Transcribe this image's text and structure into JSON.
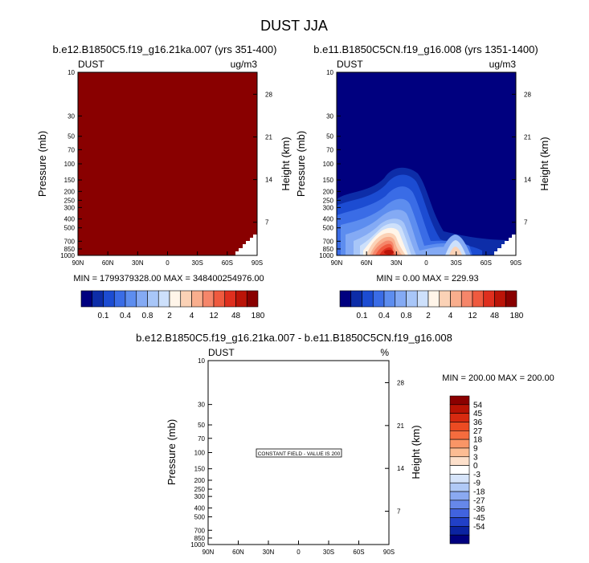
{
  "page_title": "DUST JJA",
  "chart_data": [
    {
      "type": "heatmap",
      "title": "b.e12.B1850C5.f19_g16.21ka.007 (yrs 351-400)",
      "variable": "DUST",
      "units": "ug/m3",
      "ylabel": "Pressure (mb)",
      "right_label": "Height (km)",
      "x_ticks": [
        "90N",
        "60N",
        "30N",
        "0",
        "30S",
        "60S",
        "90S"
      ],
      "y_ticks": [
        "10",
        "30",
        "50",
        "70",
        "100",
        "150",
        "200",
        "250",
        "300",
        "400",
        "500",
        "700",
        "850",
        "1000"
      ],
      "height_ticks": [
        "28",
        "21",
        "14",
        "7"
      ],
      "ylim": [
        10,
        1000
      ],
      "y_scale": "log",
      "stats": "MIN = 1799379328.00   MAX = 348400254976.00",
      "field": "saturated above top contour level (>180) everywhere except masked terrain near 90S surface",
      "levels": [
        "0.1",
        "0.4",
        "0.8",
        "2",
        "4",
        "12",
        "48",
        "180"
      ]
    },
    {
      "type": "heatmap",
      "title": "b.e11.B1850C5CN.f19_g16.008 (yrs 1351-1400)",
      "variable": "DUST",
      "units": "ug/m3",
      "ylabel": "Pressure (mb)",
      "right_label": "Height (km)",
      "x_ticks": [
        "90N",
        "60N",
        "30N",
        "0",
        "30S",
        "60S",
        "90S"
      ],
      "y_ticks": [
        "10",
        "30",
        "50",
        "70",
        "100",
        "150",
        "200",
        "250",
        "300",
        "400",
        "500",
        "700",
        "850",
        "1000"
      ],
      "height_ticks": [
        "28",
        "21",
        "14",
        "7"
      ],
      "ylim": [
        10,
        1000
      ],
      "y_scale": "log",
      "stats": "MIN =   0.00   MAX = 229.93",
      "field": "maximum near 20-25N below 700 mb; secondary maximum near 15S surface",
      "levels": [
        "0.1",
        "0.4",
        "0.8",
        "2",
        "4",
        "12",
        "48",
        "180"
      ]
    },
    {
      "type": "heatmap",
      "title": "b.e12.B1850C5.f19_g16.21ka.007 - b.e11.B1850C5CN.f19_g16.008",
      "variable": "DUST",
      "units": "%",
      "ylabel": "Pressure (mb)",
      "right_label": "Height (km)",
      "x_ticks": [
        "90N",
        "60N",
        "30N",
        "0",
        "30S",
        "60S",
        "90S"
      ],
      "y_ticks": [
        "10",
        "30",
        "50",
        "70",
        "100",
        "150",
        "200",
        "250",
        "300",
        "400",
        "500",
        "700",
        "850",
        "1000"
      ],
      "height_ticks": [
        "28",
        "21",
        "14",
        "7"
      ],
      "ylim": [
        10,
        1000
      ],
      "y_scale": "log",
      "stats": "MIN = 200.00   MAX = 200.00",
      "note": "CONSTANT FIELD - VALUE IS 200",
      "levels": [
        "54",
        "45",
        "36",
        "27",
        "18",
        "9",
        "3",
        "0",
        "-3",
        "-9",
        "-18",
        "-27",
        "-36",
        "-45",
        "-54"
      ]
    }
  ],
  "colorbar_top": {
    "colors": [
      "#00007f",
      "#0d2da8",
      "#1c4cd2",
      "#3a6ce6",
      "#5d8def",
      "#84aaf4",
      "#a8c6f8",
      "#cde0fb",
      "#fff5e9",
      "#fbd2b6",
      "#f9ae8d",
      "#f5866a",
      "#ef5a3f",
      "#df2f1e",
      "#bb1408",
      "#890000"
    ]
  },
  "colorbar_diff": {
    "colors": [
      "#8b0000",
      "#b81304",
      "#d72a10",
      "#ec4b22",
      "#f56c3e",
      "#f99566",
      "#fcbc93",
      "#fde0cb",
      "#ffffff",
      "#d6e4fa",
      "#b0c9f6",
      "#8aa9f1",
      "#6688ea",
      "#4163df",
      "#2140c7",
      "#0b23a1",
      "#00007f"
    ]
  }
}
